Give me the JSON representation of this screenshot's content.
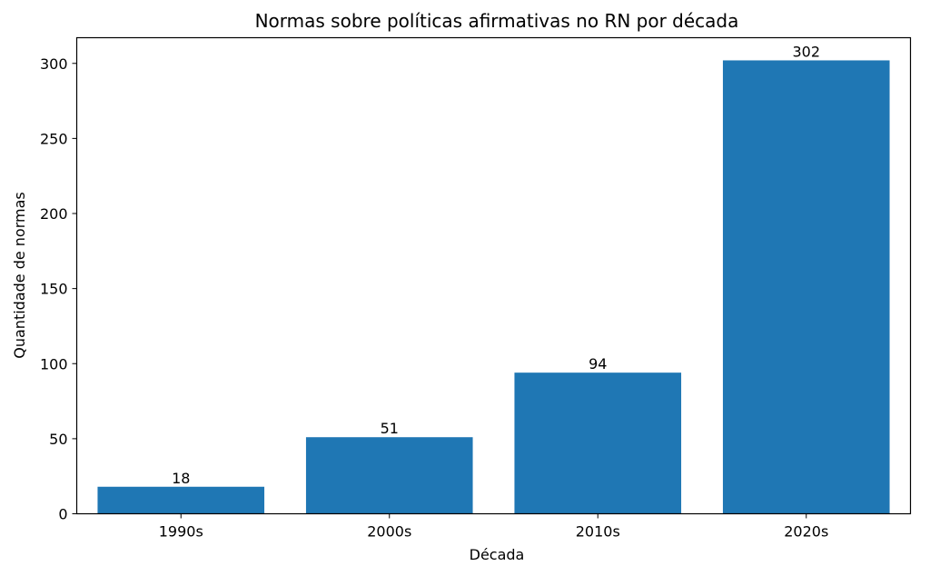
{
  "chart_data": {
    "type": "bar",
    "title": "Normas sobre políticas afirmativas no RN por década",
    "xlabel": "Década",
    "ylabel": "Quantidade de normas",
    "categories": [
      "1990s",
      "2000s",
      "2010s",
      "2020s"
    ],
    "values": [
      18,
      51,
      94,
      302
    ],
    "data_labels": [
      "18",
      "51",
      "94",
      "302"
    ],
    "ylim": [
      0,
      317.1
    ],
    "yticks": [
      0,
      50,
      100,
      150,
      200,
      250,
      300
    ],
    "ytick_labels": [
      "0",
      "50",
      "100",
      "150",
      "200",
      "250",
      "300"
    ],
    "bar_color": "#1f77b4",
    "grid": false,
    "legend": "none"
  }
}
